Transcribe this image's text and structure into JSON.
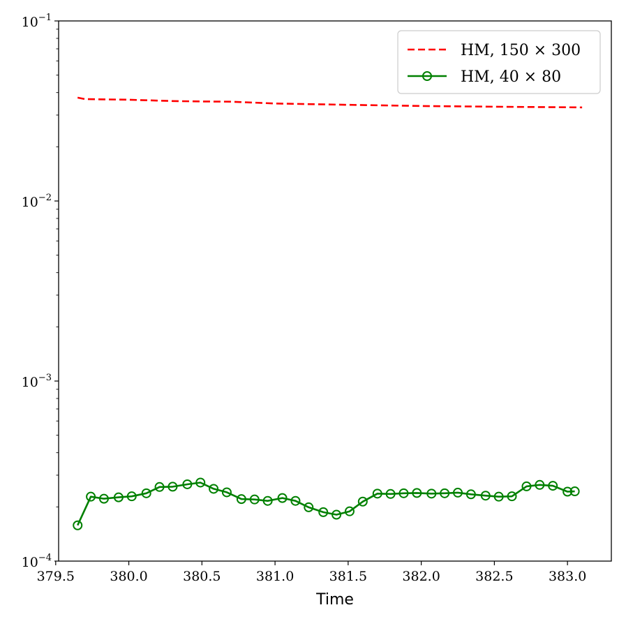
{
  "chart_data": {
    "type": "line",
    "title": "",
    "xlabel": "Time",
    "ylabel": "",
    "yscale": "log",
    "xlim": [
      379.52,
      383.3
    ],
    "ylim": [
      0.0001,
      0.1
    ],
    "xticks": [
      379.5,
      380.0,
      380.5,
      381.0,
      381.5,
      382.0,
      382.5,
      383.0
    ],
    "xtick_labels": [
      "379.5",
      "380.0",
      "380.5",
      "381.0",
      "381.5",
      "382.0",
      "382.5",
      "383.0"
    ],
    "yticks": [
      {
        "value": 0.1,
        "base": "10",
        "exp": "−1"
      },
      {
        "value": 0.01,
        "base": "10",
        "exp": "−2"
      },
      {
        "value": 0.001,
        "base": "10",
        "exp": "−3"
      },
      {
        "value": 0.0001,
        "base": "10",
        "exp": "−4"
      }
    ],
    "grid": false,
    "legend_position": "top-right",
    "series": [
      {
        "name": "HM, 150 × 300",
        "color": "#ff0000",
        "style": "dashed",
        "marker": "none",
        "x": [
          379.65,
          379.7,
          380.0,
          380.3,
          380.5,
          380.7,
          381.0,
          381.5,
          382.0,
          382.5,
          383.1
        ],
        "y": [
          0.0375,
          0.0368,
          0.0365,
          0.0359,
          0.0357,
          0.0356,
          0.0348,
          0.0342,
          0.0337,
          0.0334,
          0.0331
        ]
      },
      {
        "name": "HM, 40 × 80",
        "color": "#008000",
        "style": "solid",
        "marker": "open-circle",
        "x": [
          379.65,
          379.74,
          379.83,
          379.93,
          380.02,
          380.12,
          380.21,
          380.3,
          380.4,
          380.49,
          380.58,
          380.67,
          380.77,
          380.86,
          380.95,
          381.05,
          381.14,
          381.23,
          381.33,
          381.42,
          381.51,
          381.6,
          381.7,
          381.79,
          381.88,
          381.97,
          382.07,
          382.16,
          382.25,
          382.34,
          382.44,
          382.53,
          382.62,
          382.72,
          382.81,
          382.9,
          383.0,
          383.05
        ],
        "y": [
          0.000158,
          0.000228,
          0.000222,
          0.000226,
          0.000229,
          0.000238,
          0.000258,
          0.000259,
          0.000267,
          0.000273,
          0.000252,
          0.000241,
          0.000221,
          0.00022,
          0.000216,
          0.000224,
          0.000216,
          0.000199,
          0.000187,
          0.000181,
          0.000189,
          0.000214,
          0.000237,
          0.000236,
          0.000238,
          0.000239,
          0.000237,
          0.000238,
          0.00024,
          0.000235,
          0.000231,
          0.000228,
          0.000229,
          0.00026,
          0.000265,
          0.000262,
          0.000243,
          0.000244
        ]
      }
    ]
  }
}
